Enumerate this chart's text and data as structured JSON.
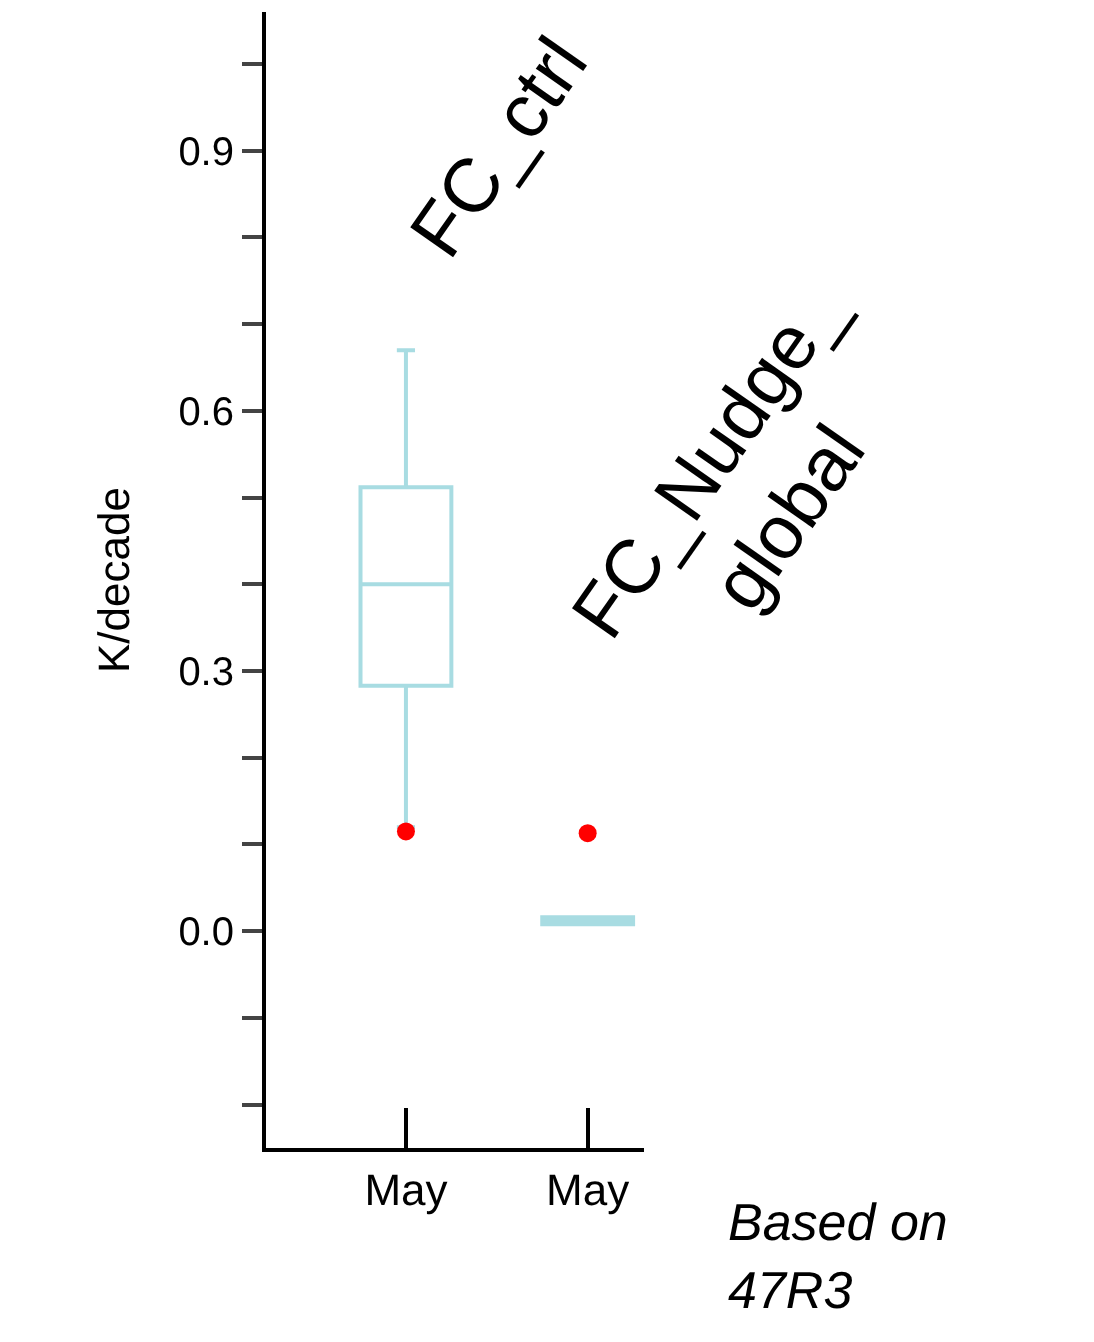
{
  "chart_data": {
    "type": "box",
    "categories": [
      "May",
      "May"
    ],
    "ylabel": "K/decade",
    "ylim": [
      -0.25,
      1.06
    ],
    "yticks": [
      {
        "value": -0.2,
        "label": null
      },
      {
        "value": -0.1,
        "label": null
      },
      {
        "value": 0,
        "label": "0.0"
      },
      {
        "value": 0.1,
        "label": null
      },
      {
        "value": 0.2,
        "label": null
      },
      0.3,
      {
        "value": 0.4,
        "label": null
      },
      {
        "value": 0.5,
        "label": null
      },
      0.6,
      {
        "value": 0.7,
        "label": null
      },
      {
        "value": 0.8,
        "label": null
      },
      0.9,
      {
        "value": 1.0,
        "label": null
      }
    ],
    "series": [
      {
        "type": "box",
        "color": "#a8dce2",
        "boxes": [
          {
            "low": 0.12,
            "q1": 0.283,
            "median": 0.4,
            "q3": 0.512,
            "high": 0.67
          },
          {
            "low": 0.008,
            "q1": 0.008,
            "median": 0.012,
            "q3": 0.016,
            "high": 0.016
          }
        ]
      },
      {
        "type": "scatter",
        "color": "#ff0000",
        "values": [
          0.115,
          0.113
        ]
      }
    ],
    "annotations": [
      "FC_ctrl",
      "FC_Nudge_\nglobal",
      "Based on\n47R3"
    ]
  }
}
